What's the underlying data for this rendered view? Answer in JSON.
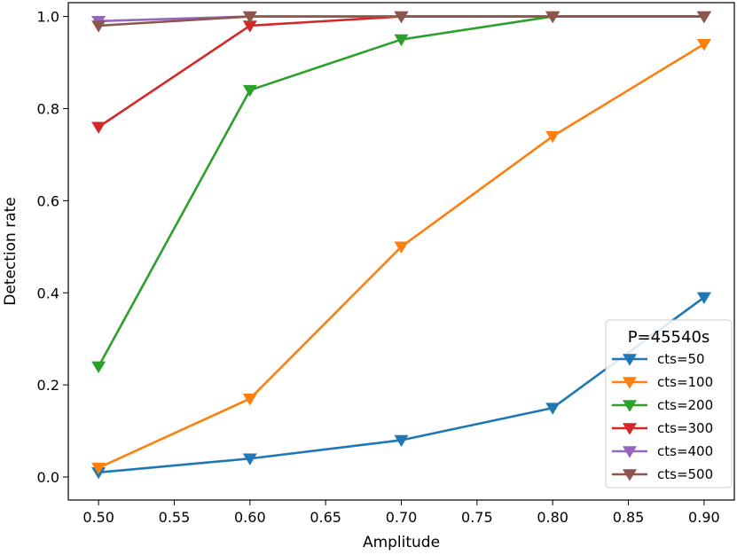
{
  "chart_data": {
    "type": "line",
    "xlabel": "Amplitude",
    "ylabel": "Detection rate",
    "xlim": [
      0.48,
      0.92
    ],
    "ylim": [
      -0.05,
      1.03
    ],
    "xticks": [
      "0.50",
      "0.55",
      "0.60",
      "0.65",
      "0.70",
      "0.75",
      "0.80",
      "0.85",
      "0.90"
    ],
    "yticks": [
      "0.0",
      "0.2",
      "0.4",
      "0.6",
      "0.8",
      "1.0"
    ],
    "x": [
      0.5,
      0.6,
      0.7,
      0.8,
      0.9
    ],
    "marker": "triangle-down",
    "grid": false,
    "legend": {
      "title": "P=45540s",
      "placement": "lower-right"
    },
    "series": [
      {
        "name": "cts=50",
        "color": "#1f77b4",
        "values": [
          0.01,
          0.04,
          0.08,
          0.15,
          0.39
        ]
      },
      {
        "name": "cts=100",
        "color": "#ff7f0e",
        "values": [
          0.02,
          0.17,
          0.5,
          0.74,
          0.94
        ]
      },
      {
        "name": "cts=200",
        "color": "#2ca02c",
        "values": [
          0.24,
          0.84,
          0.95,
          1.0,
          1.0
        ]
      },
      {
        "name": "cts=300",
        "color": "#d62728",
        "values": [
          0.76,
          0.98,
          1.0,
          1.0,
          1.0
        ]
      },
      {
        "name": "cts=400",
        "color": "#9467bd",
        "values": [
          0.99,
          1.0,
          1.0,
          1.0,
          1.0
        ]
      },
      {
        "name": "cts=500",
        "color": "#8c564b",
        "values": [
          0.98,
          1.0,
          1.0,
          1.0,
          1.0
        ]
      }
    ]
  }
}
